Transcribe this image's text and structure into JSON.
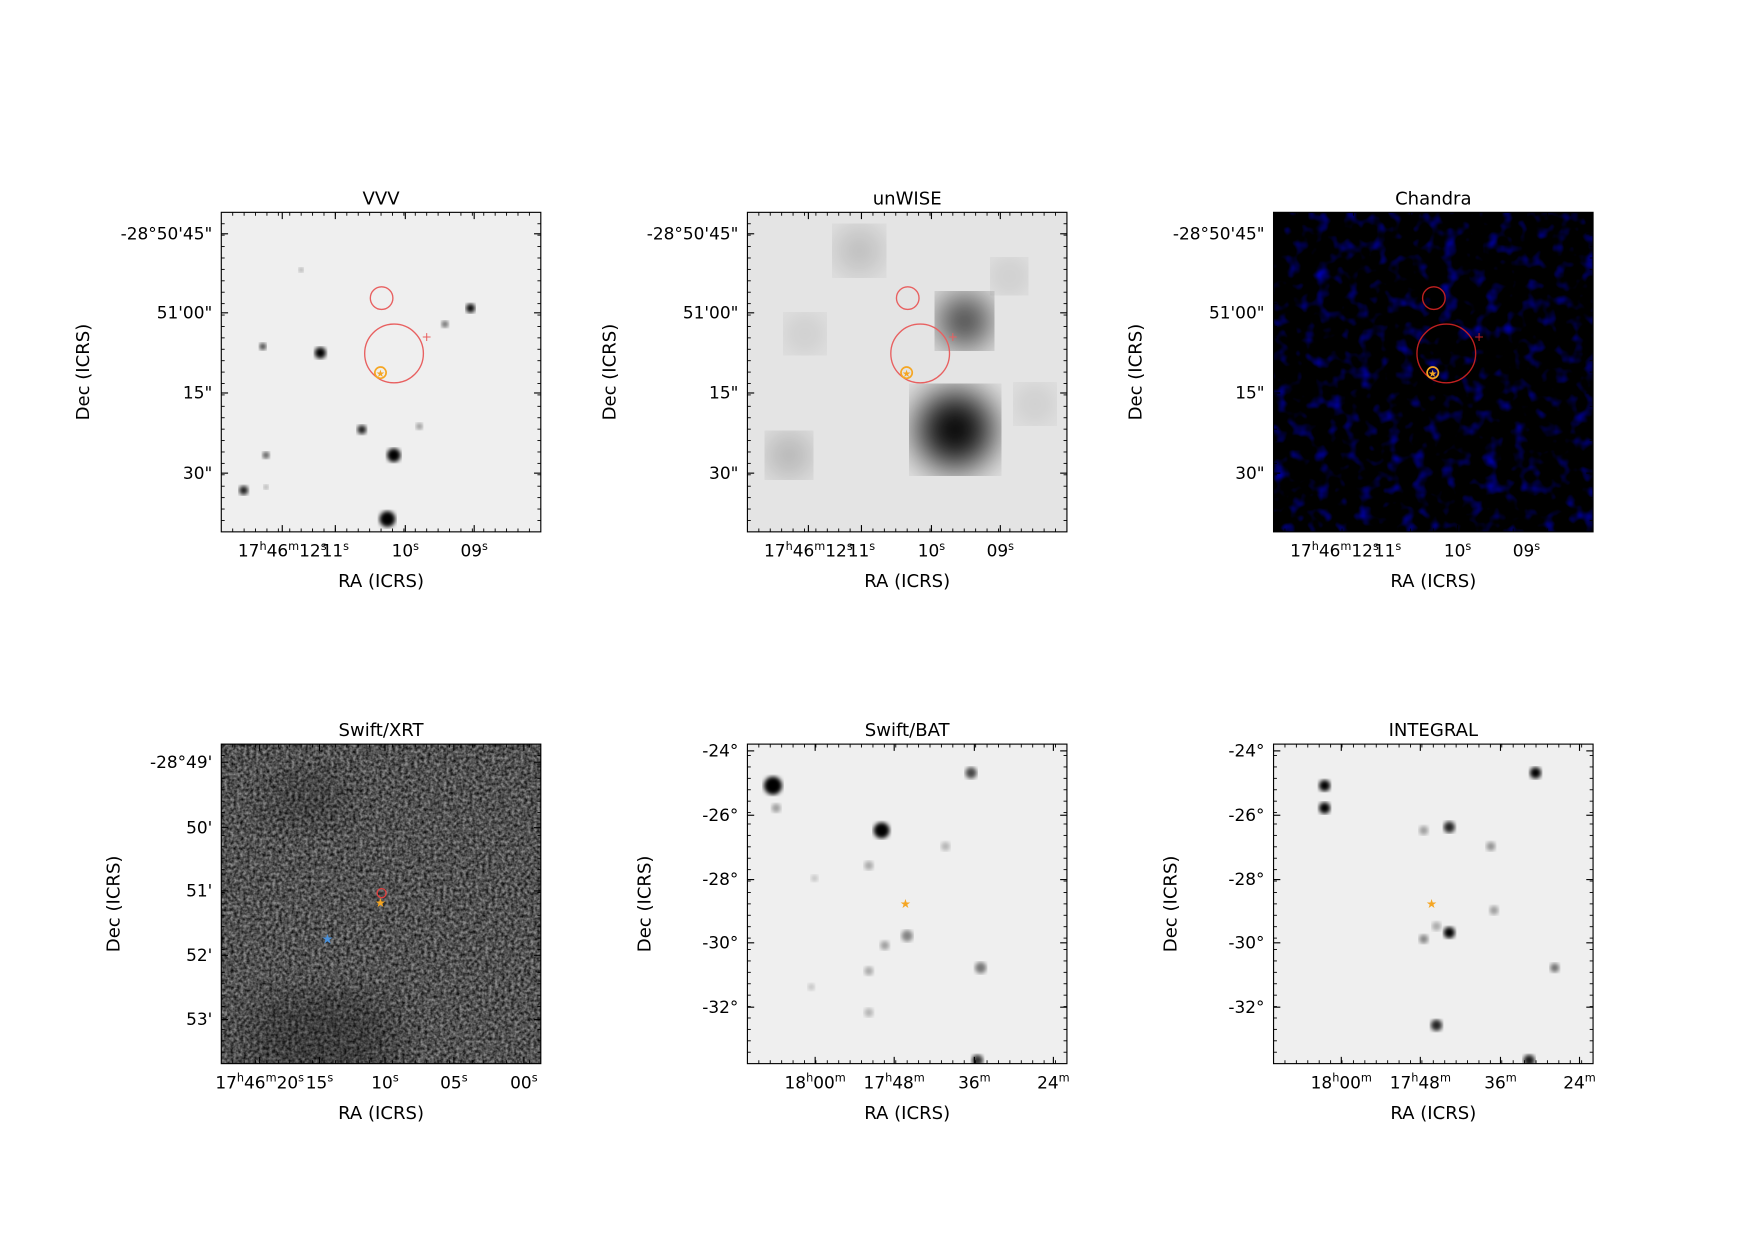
{
  "panels": [
    {
      "title": "VVV",
      "xlabel": "RA (ICRS)",
      "ylabel": "Dec (ICRS)",
      "xticks": [
        "17h46m12s",
        "11s",
        "10s",
        "09s"
      ],
      "yticks": [
        "-28°50'45\"",
        "51'00\"",
        "15\"",
        "30\""
      ]
    },
    {
      "title": "unWISE",
      "xlabel": "RA (ICRS)",
      "ylabel": "Dec (ICRS)",
      "xticks": [
        "17h46m12s",
        "11s",
        "10s",
        "09s"
      ],
      "yticks": [
        "-28°50'45\"",
        "51'00\"",
        "15\"",
        "30\""
      ]
    },
    {
      "title": "Chandra",
      "xlabel": "RA (ICRS)",
      "ylabel": "Dec (ICRS)",
      "xticks": [
        "17h46m12s",
        "11s",
        "10s",
        "09s"
      ],
      "yticks": [
        "-28°50'45\"",
        "51'00\"",
        "15\"",
        "30\""
      ]
    },
    {
      "title": "Swift/XRT",
      "xlabel": "RA (ICRS)",
      "ylabel": "Dec (ICRS)",
      "xticks": [
        "17h46m20s",
        "15s",
        "10s",
        "05s",
        "00s"
      ],
      "yticks": [
        "-28°49'",
        "50'",
        "51'",
        "52'",
        "53'"
      ]
    },
    {
      "title": "Swift/BAT",
      "xlabel": "RA (ICRS)",
      "ylabel": "Dec (ICRS)",
      "xticks": [
        "18h00m",
        "17h48m",
        "36m",
        "24m"
      ],
      "yticks": [
        "-24°",
        "-26°",
        "-28°",
        "-30°",
        "-32°"
      ]
    },
    {
      "title": "INTEGRAL",
      "xlabel": "RA (ICRS)",
      "ylabel": "Dec (ICRS)",
      "xticks": [
        "18h00m",
        "17h48m",
        "36m",
        "24m"
      ],
      "yticks": [
        "-24°",
        "-26°",
        "-28°",
        "-30°",
        "-32°"
      ]
    }
  ]
}
